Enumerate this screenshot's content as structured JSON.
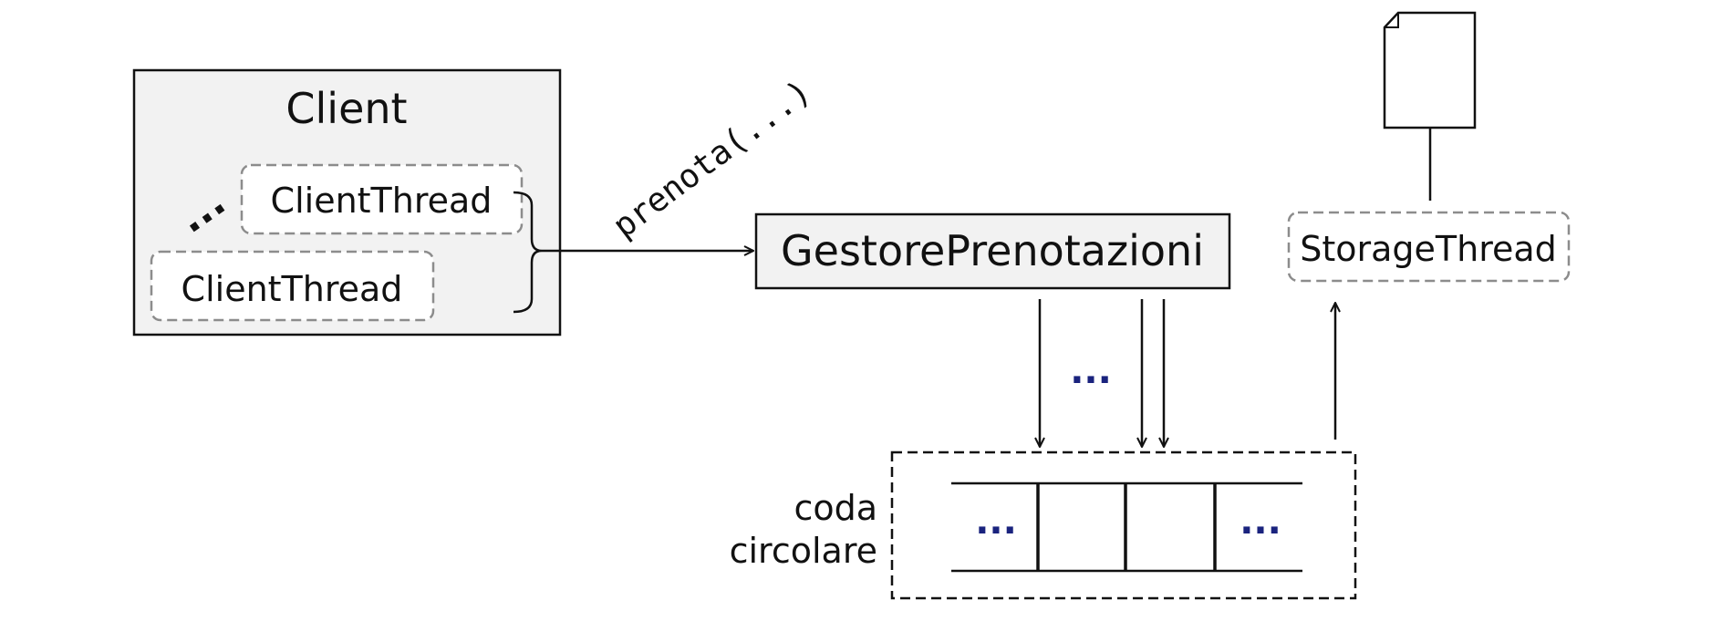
{
  "client": {
    "title": "Client",
    "thread_back": "ClientThread",
    "thread_front": "ClientThread",
    "ellipsis": "..."
  },
  "call": {
    "label": "prenota(...)"
  },
  "gestore": {
    "label": "GestorePrenotazioni"
  },
  "storage": {
    "label": "StorageThread"
  },
  "queue": {
    "label_line1": "coda",
    "label_line2": "circolare",
    "ellipsis_left": "...",
    "ellipsis_right": "..."
  },
  "arrows": {
    "ellipsis": "..."
  },
  "colors": {
    "ellipsis_blue": "#1a237e",
    "client_fill": "#f2f2f2",
    "gestore_fill": "#f2f2f2",
    "dashed_gray": "#8c8c8c"
  }
}
